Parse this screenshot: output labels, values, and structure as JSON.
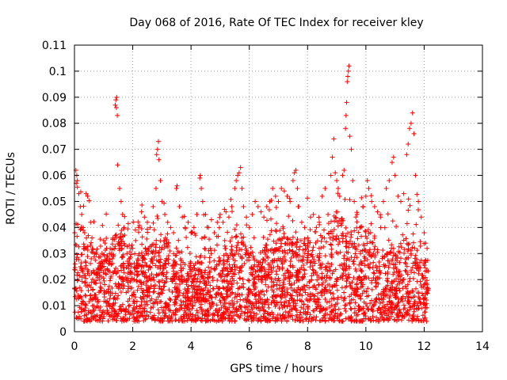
{
  "chart_data": {
    "type": "scatter",
    "title": "Day 068 of 2016, Rate Of TEC Index for receiver kley",
    "xlabel": "GPS time / hours",
    "ylabel": "ROTI / TECUs",
    "xlim": [
      0,
      14
    ],
    "ylim": [
      0,
      0.11
    ],
    "x_ticks": [
      "0",
      "2",
      "4",
      "6",
      "8",
      "10",
      "12",
      "14"
    ],
    "y_ticks": [
      "0",
      "0.01",
      "0.02",
      "0.03",
      "0.04",
      "0.05",
      "0.06",
      "0.07",
      "0.08",
      "0.09",
      "0.1",
      "0.11"
    ],
    "grid": true,
    "marker": "+",
    "marker_color": "#ff0000",
    "series": [
      {
        "name": "ROTI",
        "points": [
          [
            0.05,
            0.062
          ],
          [
            0.08,
            0.06
          ],
          [
            0.1,
            0.058
          ],
          [
            0.15,
            0.053
          ],
          [
            0.2,
            0.048
          ],
          [
            0.25,
            0.045
          ],
          [
            0.3,
            0.04
          ],
          [
            0.4,
            0.053
          ],
          [
            0.45,
            0.052
          ],
          [
            0.35,
            0.038
          ],
          [
            0.55,
            0.042
          ],
          [
            0.6,
            0.036
          ],
          [
            0.7,
            0.03
          ],
          [
            0.9,
            0.025
          ],
          [
            1.0,
            0.035
          ],
          [
            1.05,
            0.034
          ],
          [
            1.1,
            0.032
          ],
          [
            1.2,
            0.03
          ],
          [
            1.3,
            0.028
          ],
          [
            1.4,
            0.087
          ],
          [
            1.42,
            0.089
          ],
          [
            1.45,
            0.09
          ],
          [
            1.47,
            0.083
          ],
          [
            1.44,
            0.086
          ],
          [
            1.48,
            0.064
          ],
          [
            1.55,
            0.055
          ],
          [
            1.6,
            0.05
          ],
          [
            1.65,
            0.045
          ],
          [
            1.7,
            0.04
          ],
          [
            1.8,
            0.03
          ],
          [
            1.9,
            0.028
          ],
          [
            2.0,
            0.032
          ],
          [
            2.1,
            0.035
          ],
          [
            2.2,
            0.04
          ],
          [
            2.3,
            0.046
          ],
          [
            2.4,
            0.044
          ],
          [
            2.5,
            0.042
          ],
          [
            2.6,
            0.04
          ],
          [
            2.7,
            0.048
          ],
          [
            2.8,
            0.055
          ],
          [
            2.82,
            0.068
          ],
          [
            2.85,
            0.07
          ],
          [
            2.88,
            0.073
          ],
          [
            2.9,
            0.066
          ],
          [
            2.95,
            0.058
          ],
          [
            3.0,
            0.05
          ],
          [
            3.1,
            0.045
          ],
          [
            3.2,
            0.042
          ],
          [
            3.3,
            0.04
          ],
          [
            3.4,
            0.038
          ],
          [
            3.5,
            0.055
          ],
          [
            3.52,
            0.056
          ],
          [
            3.6,
            0.048
          ],
          [
            3.7,
            0.044
          ],
          [
            3.8,
            0.04
          ],
          [
            3.9,
            0.042
          ],
          [
            4.0,
            0.038
          ],
          [
            4.1,
            0.04
          ],
          [
            4.2,
            0.045
          ],
          [
            4.3,
            0.059
          ],
          [
            4.32,
            0.06
          ],
          [
            4.35,
            0.055
          ],
          [
            4.4,
            0.05
          ],
          [
            4.5,
            0.045
          ],
          [
            4.6,
            0.04
          ],
          [
            4.7,
            0.043
          ],
          [
            4.8,
            0.038
          ],
          [
            4.9,
            0.042
          ],
          [
            5.0,
            0.045
          ],
          [
            5.1,
            0.042
          ],
          [
            5.2,
            0.046
          ],
          [
            5.3,
            0.044
          ],
          [
            5.4,
            0.048
          ],
          [
            5.5,
            0.055
          ],
          [
            5.55,
            0.058
          ],
          [
            5.6,
            0.06
          ],
          [
            5.65,
            0.061
          ],
          [
            5.7,
            0.063
          ],
          [
            5.75,
            0.055
          ],
          [
            5.8,
            0.048
          ],
          [
            5.9,
            0.044
          ],
          [
            6.0,
            0.04
          ],
          [
            6.1,
            0.045
          ],
          [
            6.2,
            0.05
          ],
          [
            6.3,
            0.048
          ],
          [
            6.4,
            0.046
          ],
          [
            6.5,
            0.044
          ],
          [
            6.6,
            0.048
          ],
          [
            6.7,
            0.05
          ],
          [
            6.8,
            0.055
          ],
          [
            6.9,
            0.052
          ],
          [
            7.0,
            0.05
          ],
          [
            7.1,
            0.055
          ],
          [
            7.2,
            0.054
          ],
          [
            7.3,
            0.052
          ],
          [
            7.4,
            0.05
          ],
          [
            7.5,
            0.058
          ],
          [
            7.55,
            0.061
          ],
          [
            7.6,
            0.062
          ],
          [
            7.65,
            0.055
          ],
          [
            7.7,
            0.048
          ],
          [
            7.8,
            0.042
          ],
          [
            7.9,
            0.04
          ],
          [
            8.0,
            0.036
          ],
          [
            8.1,
            0.044
          ],
          [
            8.2,
            0.045
          ],
          [
            8.3,
            0.04
          ],
          [
            8.4,
            0.042
          ],
          [
            8.5,
            0.052
          ],
          [
            8.6,
            0.055
          ],
          [
            8.7,
            0.045
          ],
          [
            8.8,
            0.06
          ],
          [
            8.85,
            0.067
          ],
          [
            8.9,
            0.074
          ],
          [
            8.95,
            0.061
          ],
          [
            9.0,
            0.058
          ],
          [
            9.05,
            0.055
          ],
          [
            9.1,
            0.052
          ],
          [
            9.2,
            0.06
          ],
          [
            9.25,
            0.062
          ],
          [
            9.3,
            0.078
          ],
          [
            9.32,
            0.083
          ],
          [
            9.34,
            0.088
          ],
          [
            9.36,
            0.096
          ],
          [
            9.38,
            0.098
          ],
          [
            9.4,
            0.1
          ],
          [
            9.42,
            0.102
          ],
          [
            9.45,
            0.075
          ],
          [
            9.5,
            0.07
          ],
          [
            9.55,
            0.058
          ],
          [
            9.6,
            0.05
          ],
          [
            9.7,
            0.045
          ],
          [
            9.8,
            0.04
          ],
          [
            9.9,
            0.048
          ],
          [
            10.0,
            0.052
          ],
          [
            10.05,
            0.058
          ],
          [
            10.1,
            0.055
          ],
          [
            10.2,
            0.05
          ],
          [
            10.3,
            0.048
          ],
          [
            10.4,
            0.046
          ],
          [
            10.5,
            0.044
          ],
          [
            10.6,
            0.05
          ],
          [
            10.7,
            0.055
          ],
          [
            10.8,
            0.058
          ],
          [
            10.9,
            0.065
          ],
          [
            10.95,
            0.067
          ],
          [
            11.0,
            0.06
          ],
          [
            11.1,
            0.052
          ],
          [
            11.2,
            0.05
          ],
          [
            11.3,
            0.053
          ],
          [
            11.4,
            0.068
          ],
          [
            11.45,
            0.072
          ],
          [
            11.5,
            0.078
          ],
          [
            11.55,
            0.08
          ],
          [
            11.6,
            0.084
          ],
          [
            11.65,
            0.076
          ],
          [
            11.7,
            0.06
          ],
          [
            11.8,
            0.05
          ],
          [
            11.9,
            0.044
          ],
          [
            12.0,
            0.038
          ],
          [
            12.05,
            0.034
          ],
          [
            12.1,
            0.032
          ]
        ]
      }
    ],
    "dense_band": {
      "x_range": [
        0.0,
        12.15
      ],
      "y_typical_range": [
        0.004,
        0.035
      ]
    }
  }
}
